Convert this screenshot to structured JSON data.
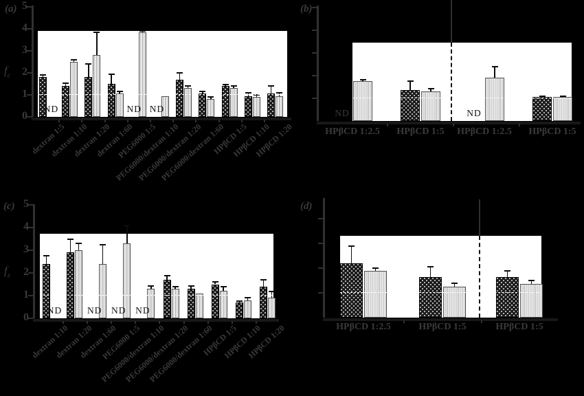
{
  "figure_title": "",
  "nd_label": "ND",
  "colors": {
    "background": "#000000",
    "plot_background": "#ffffff",
    "bar_dark": "#1c1c1c",
    "bar_dark_dot": "#d8d8d8",
    "bar_light": "#d8d8d8",
    "bar_light_stripe": "#aeaeae",
    "axis": "#313131",
    "text_dim": "#3a3a3a",
    "text_on_white": "#141414",
    "error_bar": "#0c0c0c",
    "reference_line": "#ffffff",
    "divider": "#2f2f2f"
  },
  "chart_data": [
    {
      "id": "a",
      "tag": "(a)",
      "type": "bar",
      "ylabel": {
        "text": "f",
        "sub": "c"
      },
      "ylim": [
        0,
        5
      ],
      "yticks": [
        0,
        1,
        2,
        3,
        4,
        5
      ],
      "ytick_labels_shown": true,
      "ref_line_value": 1,
      "grid": "off",
      "legend": "none",
      "categories": [
        "dextran 1:5",
        "dextran 1:10",
        "dextran 1:20",
        "dextran 1:60",
        "PEG6000 1:5",
        "PEG6000/dextran 1:10",
        "PEG6000/dextran 1:20",
        "PEG6000/dextran 1:60",
        "HPβCD 1:5",
        "HPβCD 1:10",
        "HPβCD 1:20"
      ],
      "series": [
        {
          "name": "dark-dotted",
          "values": [
            1.8,
            1.4,
            1.8,
            1.5,
            null,
            null,
            1.7,
            1.05,
            1.4,
            0.95,
            1.05
          ],
          "errors": [
            0.12,
            0.12,
            0.6,
            0.45,
            null,
            null,
            0.3,
            0.1,
            0.08,
            0.15,
            0.35
          ]
        },
        {
          "name": "light-striped",
          "values": [
            null,
            2.5,
            2.8,
            1.05,
            3.85,
            0.95,
            1.3,
            0.8,
            1.3,
            0.9,
            0.95
          ],
          "errors": [
            null,
            0.1,
            1.05,
            0.1,
            0.05,
            0,
            0.1,
            0.1,
            0.12,
            0.1,
            0.15
          ]
        }
      ],
      "nd": [
        {
          "group": 0,
          "series": 1
        },
        {
          "group": 4,
          "series": 0
        },
        {
          "group": 5,
          "series": 0
        }
      ],
      "divider_after_group": null
    },
    {
      "id": "b",
      "tag": "(b)",
      "type": "bar",
      "ylabel": null,
      "ylim": [
        0,
        5
      ],
      "yticks": [
        1,
        2,
        3,
        4,
        5
      ],
      "ytick_labels_shown": false,
      "ref_line_value": 1,
      "grid": "off",
      "legend": "none",
      "categories": [
        "HPβCD 1:2.5",
        "HPβCD 1:5",
        "HPβCD 1:2.5",
        "HPβCD 1:5"
      ],
      "series": [
        {
          "name": "dark-dotted",
          "values": [
            null,
            1.35,
            null,
            1.05
          ],
          "errors": [
            null,
            0.4,
            null,
            0.05
          ]
        },
        {
          "name": "light-striped",
          "values": [
            1.75,
            1.3,
            1.9,
            1.05
          ],
          "errors": [
            0.08,
            0.12,
            0.5,
            0.05
          ]
        }
      ],
      "nd": [
        {
          "group": 0,
          "series": 0
        },
        {
          "group": 2,
          "series": 0
        }
      ],
      "divider_after_group": 2
    },
    {
      "id": "c",
      "tag": "(c)",
      "type": "bar",
      "ylabel": {
        "text": "f",
        "sub": "s"
      },
      "ylim": [
        0,
        5
      ],
      "yticks": [
        0,
        1,
        2,
        3,
        4,
        5
      ],
      "ytick_labels_shown": true,
      "ref_line_value": 1,
      "grid": "off",
      "legend": "none",
      "categories": [
        "dextran 1:10",
        "dextran 1:20",
        "dextran 1:60",
        "PEG6000 1:5",
        "PEG6000/dextran 1:10",
        "PEG6000/dextran 1:20",
        "PEG6000/dextran 1:60",
        "HPβCD 1:5",
        "HPβCD 1:10",
        "HPβCD 1:20"
      ],
      "series": [
        {
          "name": "dark-dotted",
          "values": [
            2.4,
            2.9,
            null,
            null,
            null,
            1.7,
            1.3,
            1.5,
            0.7,
            1.4
          ],
          "errors": [
            0.35,
            0.6,
            null,
            null,
            null,
            0.18,
            0.12,
            0.1,
            0.06,
            0.3
          ]
        },
        {
          "name": "light-striped",
          "values": [
            null,
            3.0,
            2.4,
            3.3,
            1.3,
            1.3,
            1.1,
            1.2,
            0.8,
            0.9
          ],
          "errors": [
            null,
            0.3,
            0.85,
            0.8,
            0.12,
            0.1,
            0,
            0.18,
            0.1,
            0.28
          ]
        }
      ],
      "nd": [
        {
          "group": 0,
          "series": 1
        },
        {
          "group": 2,
          "series": 0
        },
        {
          "group": 3,
          "series": 0
        },
        {
          "group": 4,
          "series": 0
        }
      ],
      "divider_after_group": null
    },
    {
      "id": "d",
      "tag": "(d)",
      "type": "bar",
      "ylabel": null,
      "ylim": [
        0,
        5
      ],
      "yticks": [
        1,
        2,
        3,
        4
      ],
      "ytick_labels_shown": false,
      "ref_line_value": 1,
      "grid": "off",
      "legend": "none",
      "categories": [
        "HPβCD 1:2.5",
        "HPβCD 1:5",
        "HPβCD 1:5"
      ],
      "series": [
        {
          "name": "dark-dotted",
          "values": [
            2.2,
            1.65,
            1.65
          ],
          "errors": [
            0.7,
            0.4,
            0.25
          ]
        },
        {
          "name": "light-striped",
          "values": [
            1.9,
            1.25,
            1.35
          ],
          "errors": [
            0.1,
            0.15,
            0.15
          ]
        }
      ],
      "nd": [],
      "divider_after_group": 2
    }
  ]
}
